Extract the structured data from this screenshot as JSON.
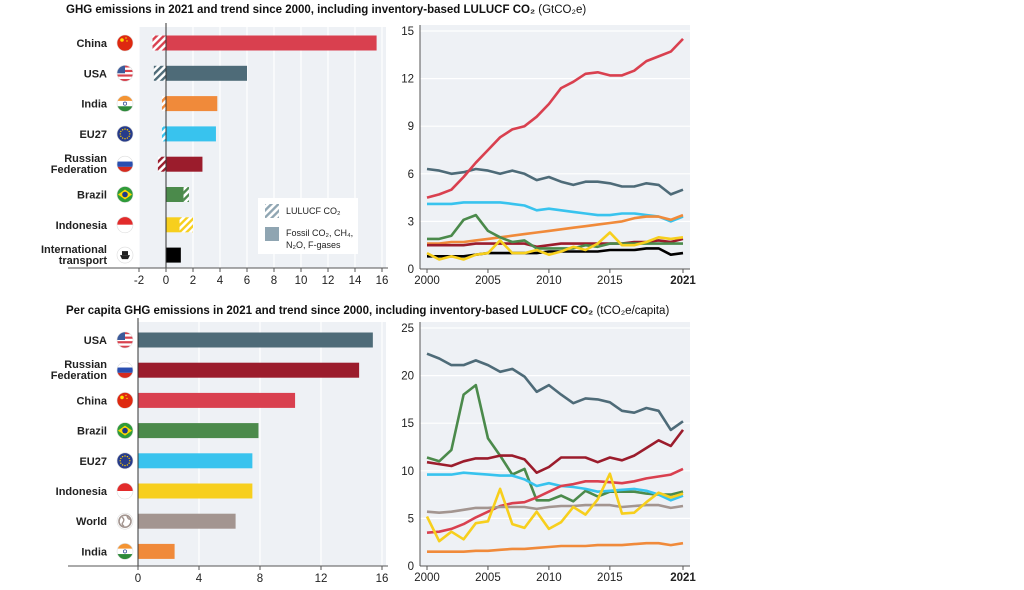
{
  "titles": {
    "top_main": "GHG emissions in 2021 and trend since 2000, including inventory-based LULUCF CO₂",
    "top_unit": "(GtCO₂e)",
    "bottom_main": "Per capita GHG emissions in 2021 and trend since 2000, including inventory-based LULUCF CO₂",
    "bottom_unit": "(tCO₂e/capita)"
  },
  "legend": {
    "lulucf": "LULUCF CO₂",
    "fossil_line1": "Fossil CO₂, CH₄,",
    "fossil_line2": "N₂O, F-gases"
  },
  "colors": {
    "China": "#d9404f",
    "USA": "#4e6b78",
    "India": "#f08a3a",
    "EU27": "#38c3ee",
    "Russian Federation": "#9b1c2c",
    "Brazil": "#4b8a4b",
    "Indonesia": "#f7cf1d",
    "International transport": "#000000",
    "World": "#a39590",
    "plot_bg": "#eef1f5"
  },
  "chart_data": [
    {
      "type": "bar",
      "title": "GHG emissions in 2021, including inventory-based LULUCF CO2",
      "xlabel": "",
      "ylabel": "",
      "unit": "GtCO2e",
      "xlim": [
        -2,
        16
      ],
      "xticks": [
        "-2",
        "0",
        "2",
        "4",
        "6",
        "8",
        "10",
        "12",
        "14",
        "16"
      ],
      "grid": true,
      "legend_position": "bottom-right",
      "categories": [
        {
          "name": "China",
          "label_lines": [
            "China"
          ],
          "fossil": 15.6,
          "lulucf": -1.0,
          "flag": "china-flag-icon"
        },
        {
          "name": "USA",
          "label_lines": [
            "USA"
          ],
          "fossil": 6.0,
          "lulucf": -0.9,
          "flag": "usa-flag-icon"
        },
        {
          "name": "India",
          "label_lines": [
            "India"
          ],
          "fossil": 3.8,
          "lulucf": -0.3,
          "flag": "india-flag-icon"
        },
        {
          "name": "EU27",
          "label_lines": [
            "EU27"
          ],
          "fossil": 3.7,
          "lulucf": -0.3,
          "flag": "eu-flag-icon"
        },
        {
          "name": "Russian Federation",
          "label_lines": [
            "Russian",
            "Federation"
          ],
          "fossil": 2.7,
          "lulucf": -0.6,
          "flag": "russia-flag-icon"
        },
        {
          "name": "Brazil",
          "label_lines": [
            "Brazil"
          ],
          "fossil": 1.3,
          "lulucf": 0.4,
          "flag": "brazil-flag-icon"
        },
        {
          "name": "Indonesia",
          "label_lines": [
            "Indonesia"
          ],
          "fossil": 1.0,
          "lulucf": 1.0,
          "flag": "indonesia-flag-icon"
        },
        {
          "name": "International transport",
          "label_lines": [
            "International",
            "transport"
          ],
          "fossil": 1.1,
          "lulucf": 0,
          "flag": "ship-icon"
        }
      ]
    },
    {
      "type": "line",
      "title": "GHG emissions trend 2000-2021",
      "unit": "GtCO2e",
      "x": [
        2000,
        2001,
        2002,
        2003,
        2004,
        2005,
        2006,
        2007,
        2008,
        2009,
        2010,
        2011,
        2012,
        2013,
        2014,
        2015,
        2016,
        2017,
        2018,
        2019,
        2020,
        2021
      ],
      "xticks": [
        "2000",
        "2005",
        "2010",
        "2015",
        "2021"
      ],
      "ylim": [
        0,
        15
      ],
      "yticks": [
        "0",
        "3",
        "6",
        "9",
        "12",
        "15"
      ],
      "grid": true,
      "series": [
        {
          "name": "USA",
          "values": [
            6.3,
            6.2,
            6.0,
            6.1,
            6.3,
            6.2,
            6.0,
            6.2,
            6.0,
            5.6,
            5.8,
            5.5,
            5.3,
            5.5,
            5.5,
            5.4,
            5.2,
            5.2,
            5.4,
            5.3,
            4.7,
            5.0
          ]
        },
        {
          "name": "EU27",
          "values": [
            4.1,
            4.1,
            4.1,
            4.2,
            4.2,
            4.2,
            4.2,
            4.1,
            4.0,
            3.7,
            3.8,
            3.7,
            3.6,
            3.5,
            3.4,
            3.4,
            3.5,
            3.5,
            3.4,
            3.3,
            3.0,
            3.3
          ]
        },
        {
          "name": "India",
          "values": [
            1.6,
            1.6,
            1.7,
            1.7,
            1.8,
            1.9,
            2.0,
            2.1,
            2.2,
            2.3,
            2.4,
            2.5,
            2.6,
            2.7,
            2.8,
            2.9,
            3.0,
            3.2,
            3.3,
            3.3,
            3.1,
            3.4
          ]
        },
        {
          "name": "Russian Federation",
          "values": [
            1.5,
            1.5,
            1.5,
            1.5,
            1.6,
            1.6,
            1.6,
            1.6,
            1.6,
            1.4,
            1.5,
            1.6,
            1.6,
            1.6,
            1.6,
            1.6,
            1.6,
            1.7,
            1.7,
            1.8,
            1.7,
            1.9
          ]
        },
        {
          "name": "Brazil",
          "values": [
            1.9,
            1.9,
            2.1,
            3.1,
            3.4,
            2.4,
            2.0,
            1.7,
            1.8,
            1.3,
            1.3,
            1.3,
            1.3,
            1.5,
            1.4,
            1.6,
            1.6,
            1.6,
            1.6,
            1.6,
            1.6,
            1.6
          ]
        },
        {
          "name": "International transport",
          "values": [
            0.8,
            0.8,
            0.8,
            0.8,
            0.9,
            1.0,
            1.0,
            1.0,
            1.0,
            1.0,
            1.1,
            1.1,
            1.1,
            1.1,
            1.1,
            1.2,
            1.2,
            1.2,
            1.3,
            1.3,
            0.9,
            1.0
          ]
        },
        {
          "name": "Indonesia",
          "values": [
            1.0,
            0.6,
            0.8,
            0.6,
            0.9,
            1.0,
            1.8,
            1.0,
            1.0,
            1.2,
            0.9,
            1.1,
            1.4,
            1.2,
            1.6,
            2.3,
            1.5,
            1.5,
            1.7,
            2.0,
            1.9,
            2.0
          ]
        },
        {
          "name": "China",
          "values": [
            4.5,
            4.7,
            5.0,
            5.8,
            6.7,
            7.5,
            8.3,
            8.8,
            9.0,
            9.6,
            10.4,
            11.4,
            11.8,
            12.3,
            12.4,
            12.2,
            12.2,
            12.5,
            13.1,
            13.4,
            13.7,
            14.5
          ]
        }
      ]
    },
    {
      "type": "bar",
      "title": "Per capita GHG emissions in 2021, including inventory-based LULUCF CO2",
      "unit": "tCO2e/capita",
      "xlim": [
        0,
        16
      ],
      "xticks": [
        "0",
        "4",
        "8",
        "12",
        "16"
      ],
      "grid": true,
      "categories": [
        {
          "name": "USA",
          "label_lines": [
            "USA"
          ],
          "value": 15.4,
          "flag": "usa-flag-icon"
        },
        {
          "name": "Russian Federation",
          "label_lines": [
            "Russian",
            "Federation"
          ],
          "value": 14.5,
          "flag": "russia-flag-icon"
        },
        {
          "name": "China",
          "label_lines": [
            "China"
          ],
          "value": 10.3,
          "flag": "china-flag-icon"
        },
        {
          "name": "Brazil",
          "label_lines": [
            "Brazil"
          ],
          "value": 7.9,
          "flag": "brazil-flag-icon"
        },
        {
          "name": "EU27",
          "label_lines": [
            "EU27"
          ],
          "value": 7.5,
          "flag": "eu-flag-icon"
        },
        {
          "name": "Indonesia",
          "label_lines": [
            "Indonesia"
          ],
          "value": 7.5,
          "flag": "indonesia-flag-icon"
        },
        {
          "name": "World",
          "label_lines": [
            "World"
          ],
          "value": 6.4,
          "flag": "globe-icon"
        },
        {
          "name": "India",
          "label_lines": [
            "India"
          ],
          "value": 2.4,
          "flag": "india-flag-icon"
        }
      ]
    },
    {
      "type": "line",
      "title": "Per capita GHG emissions trend 2000-2021",
      "unit": "tCO2e/capita",
      "x": [
        2000,
        2001,
        2002,
        2003,
        2004,
        2005,
        2006,
        2007,
        2008,
        2009,
        2010,
        2011,
        2012,
        2013,
        2014,
        2015,
        2016,
        2017,
        2018,
        2019,
        2020,
        2021
      ],
      "xticks": [
        "2000",
        "2005",
        "2010",
        "2015",
        "2021"
      ],
      "ylim": [
        0,
        25
      ],
      "yticks": [
        "0",
        "5",
        "10",
        "15",
        "20",
        "25"
      ],
      "grid": true,
      "series": [
        {
          "name": "USA",
          "values": [
            22.3,
            21.8,
            21.1,
            21.1,
            21.6,
            21.1,
            20.4,
            20.7,
            19.9,
            18.3,
            19.0,
            18.0,
            17.1,
            17.6,
            17.5,
            17.2,
            16.3,
            16.1,
            16.6,
            16.3,
            14.3,
            15.2
          ]
        },
        {
          "name": "Brazil",
          "values": [
            11.4,
            11.0,
            12.2,
            18.0,
            19.0,
            13.4,
            11.6,
            9.6,
            10.2,
            6.9,
            6.9,
            7.4,
            6.8,
            7.9,
            7.3,
            7.8,
            7.8,
            7.8,
            7.6,
            7.5,
            7.5,
            7.8
          ]
        },
        {
          "name": "Russian Federation",
          "values": [
            10.9,
            10.7,
            10.5,
            11.0,
            11.3,
            11.3,
            11.6,
            11.6,
            11.2,
            9.8,
            10.4,
            11.4,
            11.4,
            11.4,
            10.9,
            11.4,
            11.1,
            11.6,
            12.4,
            13.2,
            12.6,
            14.3
          ]
        },
        {
          "name": "EU27",
          "values": [
            9.6,
            9.6,
            9.6,
            9.8,
            9.7,
            9.6,
            9.5,
            9.5,
            9.1,
            8.4,
            8.7,
            8.4,
            8.3,
            8.1,
            7.8,
            7.9,
            8.0,
            8.1,
            7.9,
            7.5,
            6.9,
            7.4
          ]
        },
        {
          "name": "China",
          "values": [
            3.5,
            3.6,
            3.9,
            4.4,
            5.1,
            5.7,
            6.3,
            6.6,
            6.7,
            7.2,
            7.8,
            8.4,
            8.6,
            8.9,
            8.9,
            8.8,
            8.7,
            8.9,
            9.2,
            9.4,
            9.6,
            10.2
          ]
        },
        {
          "name": "World",
          "values": [
            5.7,
            5.6,
            5.7,
            5.9,
            6.1,
            6.1,
            6.2,
            6.2,
            6.2,
            6.0,
            6.2,
            6.3,
            6.3,
            6.4,
            6.4,
            6.4,
            6.2,
            6.3,
            6.4,
            6.4,
            6.1,
            6.3
          ]
        },
        {
          "name": "Indonesia",
          "values": [
            5.2,
            2.6,
            3.6,
            2.8,
            4.5,
            4.7,
            8.1,
            4.4,
            4.0,
            5.7,
            3.9,
            4.6,
            6.2,
            5.4,
            7.0,
            9.7,
            5.5,
            5.6,
            6.7,
            7.7,
            7.2,
            7.6
          ]
        },
        {
          "name": "India",
          "values": [
            1.5,
            1.5,
            1.5,
            1.5,
            1.6,
            1.6,
            1.7,
            1.8,
            1.8,
            1.9,
            2.0,
            2.1,
            2.1,
            2.1,
            2.2,
            2.2,
            2.2,
            2.3,
            2.4,
            2.4,
            2.2,
            2.4
          ]
        }
      ]
    }
  ]
}
